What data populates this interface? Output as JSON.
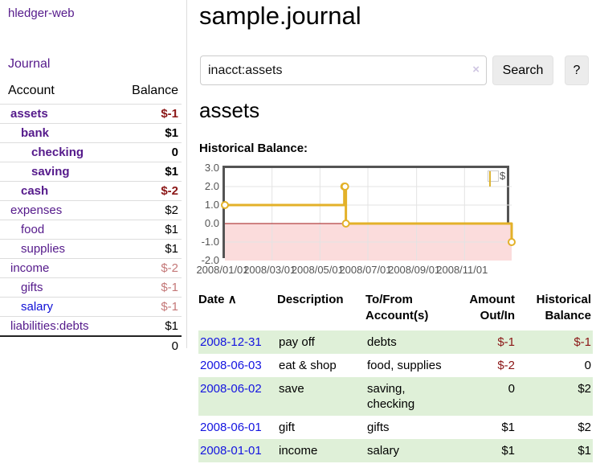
{
  "app": {
    "brand": "hledger-web"
  },
  "sidebar": {
    "journal_link": "Journal",
    "table": {
      "account_header": "Account",
      "balance_header": "Balance",
      "rows": [
        {
          "name": "assets",
          "balance": "$-1",
          "depth": 1,
          "bold": true,
          "balance_style": "neg-strong",
          "link": "visited"
        },
        {
          "name": "bank",
          "balance": "$1",
          "depth": 2,
          "bold": true,
          "balance_style": "normal",
          "link": "visited"
        },
        {
          "name": "checking",
          "balance": "0",
          "depth": 3,
          "bold": true,
          "balance_style": "normal",
          "link": "visited"
        },
        {
          "name": "saving",
          "balance": "$1",
          "depth": 3,
          "bold": true,
          "balance_style": "normal",
          "link": "visited"
        },
        {
          "name": "cash",
          "balance": "$-2",
          "depth": 2,
          "bold": true,
          "balance_style": "neg-strong",
          "link": "visited"
        },
        {
          "name": "expenses",
          "balance": "$2",
          "depth": 1,
          "bold": false,
          "balance_style": "normal",
          "link": "visited"
        },
        {
          "name": "food",
          "balance": "$1",
          "depth": 2,
          "bold": false,
          "balance_style": "normal",
          "link": "visited"
        },
        {
          "name": "supplies",
          "balance": "$1",
          "depth": 2,
          "bold": false,
          "balance_style": "normal",
          "link": "visited"
        },
        {
          "name": "income",
          "balance": "$-2",
          "depth": 1,
          "bold": false,
          "balance_style": "neg-soft",
          "link": "visited"
        },
        {
          "name": "gifts",
          "balance": "$-1",
          "depth": 2,
          "bold": false,
          "balance_style": "neg-soft",
          "link": "visited"
        },
        {
          "name": "salary",
          "balance": "$-1",
          "depth": 2,
          "bold": false,
          "balance_style": "neg-soft",
          "link": "unvisited"
        },
        {
          "name": "liabilities:debts",
          "balance": "$1",
          "depth": 1,
          "bold": false,
          "balance_style": "normal",
          "link": "visited"
        }
      ],
      "total": "0"
    }
  },
  "header": {
    "title": "sample.journal"
  },
  "search": {
    "query": "inacct:assets",
    "clear_icon": "×",
    "button_label": "Search",
    "help_label": "?"
  },
  "account_page": {
    "title": "assets",
    "chart_label": "Historical Balance:"
  },
  "chart_data": {
    "type": "line",
    "step": true,
    "title": "Historical Balance",
    "series": [
      {
        "name": "$",
        "color": "#e3b129",
        "points": [
          [
            "2008-01-01",
            1
          ],
          [
            "2008-06-01",
            2
          ],
          [
            "2008-06-02",
            2
          ],
          [
            "2008-06-03",
            0
          ],
          [
            "2008-12-31",
            -1
          ]
        ]
      }
    ],
    "xlim": [
      "2008-01-01",
      "2008-12-31"
    ],
    "ylim": [
      -2,
      3
    ],
    "ytick_values": [
      3,
      2,
      1,
      0,
      -1,
      -2
    ],
    "yticks": [
      "3.0",
      "2.0",
      "1.0",
      "0.0",
      "-1.0",
      "-2.0"
    ],
    "xticks": [
      {
        "label": "2008/01/01",
        "date": "2008-01-01"
      },
      {
        "label": "2008/03/01",
        "date": "2008-03-01"
      },
      {
        "label": "2008/05/01",
        "date": "2008-05-01"
      },
      {
        "label": "2008/07/01",
        "date": "2008-07-01"
      },
      {
        "label": "2008/09/01",
        "date": "2008-09-01"
      },
      {
        "label": "2008/11/01",
        "date": "2008-11-01"
      }
    ],
    "grid": true,
    "negative_region_color": "#fbdcdc",
    "zero_line_color": "#a21616",
    "gridline_color": "#e3e3e3",
    "border_color": "#545454",
    "legend": {
      "label": "$",
      "position": "top-right"
    }
  },
  "register": {
    "headers": {
      "date": "Date",
      "sort_icon": "∧",
      "description": "Description",
      "tofrom": "To/From\nAccount(s)",
      "amount": "Amount\nOut/In",
      "historical": "Historical\nBalance"
    },
    "rows": [
      {
        "date": "2008-12-31",
        "description": "pay off",
        "accounts": "debts",
        "amount": "$-1",
        "balance": "$-1",
        "amount_neg": true,
        "balance_neg": true
      },
      {
        "date": "2008-06-03",
        "description": "eat & shop",
        "accounts": "food, supplies",
        "amount": "$-2",
        "balance": "0",
        "amount_neg": true,
        "balance_neg": false
      },
      {
        "date": "2008-06-02",
        "description": "save",
        "accounts": "saving,\nchecking",
        "amount": "0",
        "balance": "$2",
        "amount_neg": false,
        "balance_neg": false
      },
      {
        "date": "2008-06-01",
        "description": "gift",
        "accounts": "gifts",
        "amount": "$1",
        "balance": "$2",
        "amount_neg": false,
        "balance_neg": false
      },
      {
        "date": "2008-01-01",
        "description": "income",
        "accounts": "salary",
        "amount": "$1",
        "balance": "$1",
        "amount_neg": false,
        "balance_neg": false
      }
    ]
  },
  "colors": {
    "link_purple": "#551a8b",
    "link_blue": "#0f0fd6",
    "negative_strong": "#8b1616",
    "negative_soft": "#c47878",
    "row_stripe_green": "#dff0d8",
    "series_yellow": "#e3b129"
  }
}
